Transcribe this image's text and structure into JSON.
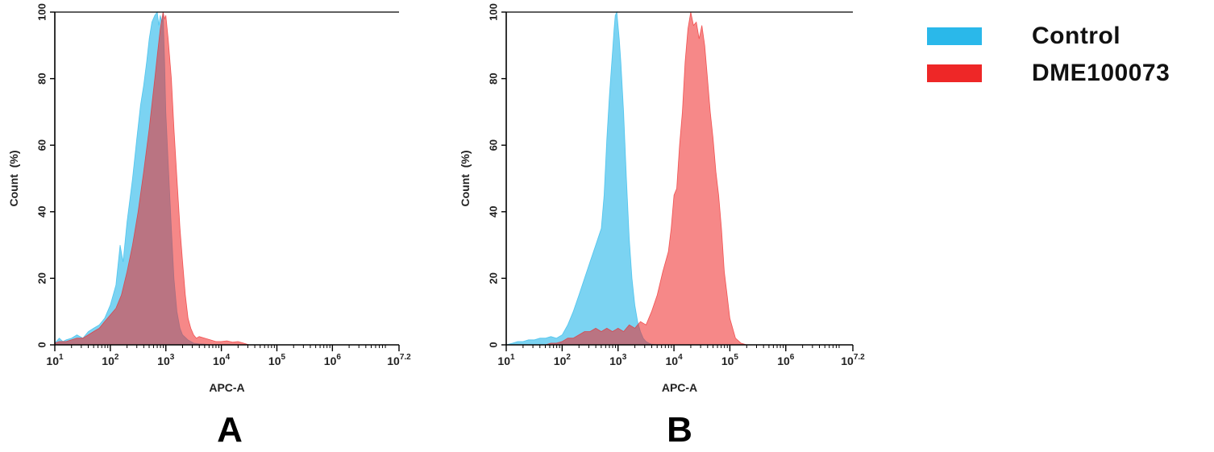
{
  "chart_data": [
    {
      "type": "area",
      "panel_label": "A",
      "xlabel": "APC-A",
      "ylabel": "Count  (%)",
      "x_scale": "log",
      "xlim": [
        10,
        15848932
      ],
      "ylim": [
        0,
        100
      ],
      "x_tick_labels": [
        {
          "base": "10",
          "exp": "1",
          "value": 10
        },
        {
          "base": "10",
          "exp": "2",
          "value": 100
        },
        {
          "base": "10",
          "exp": "3",
          "value": 1000
        },
        {
          "base": "10",
          "exp": "4",
          "value": 10000
        },
        {
          "base": "10",
          "exp": "5",
          "value": 100000
        },
        {
          "base": "10",
          "exp": "6",
          "value": 1000000
        },
        {
          "base": "10",
          "exp": "7.2",
          "value": 15848932
        }
      ],
      "y_ticks": [
        "0",
        "20",
        "40",
        "60",
        "80",
        "100"
      ],
      "series": [
        {
          "name": "Control",
          "color": "#2ab8ea",
          "x": [
            10,
            12,
            14,
            16,
            20,
            25,
            32,
            40,
            50,
            63,
            79,
            100,
            126,
            150,
            170,
            200,
            251,
            300,
            350,
            398,
            450,
            501,
            560,
            631,
            700,
            750,
            794,
            850,
            891,
            950,
            1000,
            1100,
            1259,
            1400,
            1585,
            1800,
            2000,
            2500,
            3162,
            4000,
            5000,
            6310,
            10000,
            20000,
            40000
          ],
          "y": [
            0.5,
            2,
            1,
            1.5,
            2,
            3,
            2,
            4,
            5,
            6,
            8,
            12,
            18,
            30,
            25,
            37,
            50,
            62,
            72,
            78,
            85,
            92,
            97,
            99,
            100,
            96,
            99,
            97,
            100,
            85,
            70,
            55,
            35,
            20,
            10,
            5,
            3,
            1.5,
            0.5,
            0.3,
            0.2,
            0,
            0,
            0,
            0
          ]
        },
        {
          "name": "DME100073",
          "color": "#ee2727",
          "x": [
            10,
            12,
            16,
            20,
            25,
            32,
            40,
            50,
            63,
            79,
            100,
            126,
            158,
            200,
            251,
            316,
            398,
            501,
            631,
            700,
            794,
            850,
            891,
            950,
            1000,
            1100,
            1259,
            1400,
            1585,
            1800,
            2000,
            2239,
            2512,
            2818,
            3162,
            3548,
            3981,
            5012,
            6310,
            7943,
            10000,
            12589,
            15849,
            19953,
            25119,
            31623
          ],
          "y": [
            0.5,
            1,
            1,
            1.5,
            2,
            2,
            3,
            4,
            5,
            7,
            9,
            11,
            15,
            22,
            30,
            40,
            52,
            65,
            80,
            87,
            95,
            98,
            100,
            98,
            99,
            92,
            80,
            65,
            50,
            35,
            25,
            15,
            8,
            5,
            3,
            2,
            2.5,
            2,
            1.5,
            1,
            1,
            1.2,
            0.8,
            1,
            0.5,
            0
          ]
        }
      ]
    },
    {
      "type": "area",
      "panel_label": "B",
      "xlabel": "APC-A",
      "ylabel": "Count  (%)",
      "x_scale": "log",
      "xlim": [
        10,
        15848932
      ],
      "ylim": [
        0,
        100
      ],
      "x_tick_labels": [
        {
          "base": "10",
          "exp": "1",
          "value": 10
        },
        {
          "base": "10",
          "exp": "2",
          "value": 100
        },
        {
          "base": "10",
          "exp": "3",
          "value": 1000
        },
        {
          "base": "10",
          "exp": "4",
          "value": 10000
        },
        {
          "base": "10",
          "exp": "5",
          "value": 100000
        },
        {
          "base": "10",
          "exp": "6",
          "value": 1000000
        },
        {
          "base": "10",
          "exp": "7.2",
          "value": 15848932
        }
      ],
      "y_ticks": [
        "0",
        "20",
        "40",
        "60",
        "80",
        "100"
      ],
      "series": [
        {
          "name": "Control",
          "color": "#2ab8ea",
          "x": [
            10,
            13,
            16,
            20,
            25,
            32,
            40,
            50,
            63,
            79,
            100,
            126,
            158,
            200,
            251,
            316,
            398,
            501,
            562,
            631,
            700,
            794,
            850,
            891,
            950,
            1000,
            1050,
            1122,
            1259,
            1413,
            1585,
            1778,
            1995,
            2239,
            2512,
            2818,
            3162,
            3548,
            3981,
            5012
          ],
          "y": [
            0,
            0.5,
            1,
            1,
            1.5,
            1.5,
            2,
            2,
            2.5,
            2,
            3,
            6,
            10,
            15,
            20,
            25,
            30,
            35,
            45,
            62,
            75,
            88,
            95,
            99,
            100,
            96,
            92,
            85,
            70,
            50,
            32,
            20,
            12,
            7,
            4,
            2,
            1,
            0.5,
            0.2,
            0
          ]
        },
        {
          "name": "DME100073",
          "color": "#ee2727",
          "x": [
            50,
            63,
            79,
            100,
            126,
            158,
            200,
            251,
            316,
            398,
            501,
            631,
            794,
            1000,
            1259,
            1585,
            1995,
            2512,
            3162,
            3981,
            5012,
            6310,
            7943,
            8900,
            10000,
            11200,
            12589,
            14125,
            15849,
            17783,
            19953,
            22387,
            25119,
            28184,
            31623,
            35481,
            39811,
            44668,
            50119,
            56234,
            63096,
            70795,
            79433,
            89125,
            100000,
            125893,
            158489,
            199526
          ],
          "y": [
            0,
            0.5,
            0.5,
            1,
            2,
            2,
            3,
            4,
            4,
            5,
            4,
            5,
            4,
            5,
            4,
            6,
            5,
            7,
            6,
            10,
            15,
            22,
            28,
            35,
            45,
            47,
            60,
            70,
            85,
            95,
            100,
            96,
            97,
            92,
            96,
            90,
            80,
            70,
            62,
            52,
            45,
            35,
            22,
            15,
            8,
            2,
            0.5,
            0
          ]
        }
      ]
    }
  ]
}
